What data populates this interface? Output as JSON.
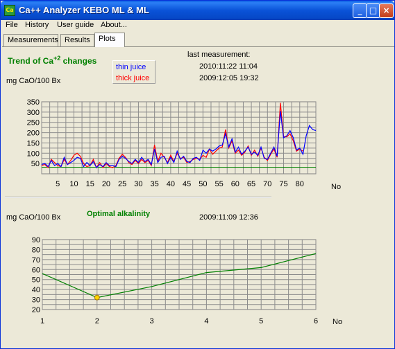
{
  "window": {
    "title": "Ca++ Analyzer KEBO ML & ML",
    "icon": "ca-app-icon"
  },
  "menu": [
    "File",
    "History",
    "User guide",
    "About..."
  ],
  "tabs": [
    "Measurements",
    "Results",
    "Plots"
  ],
  "active_tab": "Plots",
  "trend": {
    "title_main": "Trend of Ca",
    "title_sup": "+2",
    "title_end": " changes",
    "unit_label": "mg CaO/100 Bx",
    "legend": {
      "thin": "thin juice",
      "thick": "thick juice",
      "thin_color": "#0000ff",
      "thick_color": "#ff0000"
    },
    "last_label": "last measurement:",
    "thin_date": "2010:11:22  11:04",
    "thick_date": "2009:12:05  19:32",
    "axis_label": "No"
  },
  "alkalinity": {
    "title": "Optimal alkalinity",
    "unit_label": "mg CaO/100 Bx",
    "date": "2009:11:09  12:36",
    "axis_label": "No"
  },
  "chart_data": [
    {
      "type": "line",
      "ylim": [
        0,
        350
      ],
      "xlim": [
        0,
        85
      ],
      "yticks": [
        50,
        100,
        150,
        200,
        250,
        300,
        350
      ],
      "xticks": [
        5,
        10,
        15,
        20,
        25,
        30,
        35,
        40,
        45,
        50,
        55,
        60,
        65,
        70,
        75,
        80
      ],
      "grid": true,
      "legend_position": "top-left",
      "baseline": {
        "value": 32,
        "color": "#008000"
      },
      "series": [
        {
          "name": "thin juice",
          "color": "#0000ff",
          "x": [
            0,
            1,
            2,
            3,
            4,
            5,
            6,
            7,
            8,
            9,
            10,
            11,
            12,
            13,
            14,
            15,
            16,
            17,
            18,
            19,
            20,
            21,
            22,
            23,
            24,
            25,
            26,
            27,
            28,
            29,
            30,
            31,
            32,
            33,
            34,
            35,
            36,
            37,
            38,
            39,
            40,
            41,
            42,
            43,
            44,
            45,
            46,
            47,
            48,
            49,
            50,
            51,
            52,
            53,
            54,
            55,
            56,
            57,
            58,
            59,
            60,
            61,
            62,
            63,
            64,
            65,
            66,
            67,
            68,
            69,
            70,
            71,
            72,
            73,
            74,
            75,
            76,
            77,
            78,
            79,
            80,
            81,
            82,
            83,
            84,
            85
          ],
          "values": [
            45,
            50,
            35,
            65,
            40,
            50,
            35,
            80,
            45,
            55,
            65,
            80,
            75,
            35,
            55,
            40,
            60,
            30,
            45,
            35,
            55,
            40,
            40,
            35,
            70,
            85,
            75,
            60,
            50,
            70,
            55,
            80,
            60,
            70,
            45,
            120,
            55,
            80,
            85,
            50,
            80,
            55,
            110,
            70,
            85,
            60,
            55,
            75,
            80,
            65,
            115,
            100,
            120,
            110,
            120,
            135,
            140,
            195,
            130,
            170,
            105,
            130,
            95,
            110,
            130,
            95,
            105,
            90,
            130,
            75,
            70,
            100,
            130,
            85,
            305,
            175,
            185,
            210,
            175,
            115,
            125,
            95,
            185,
            235,
            215,
            210
          ]
        },
        {
          "name": "thick juice",
          "color": "#ff0000",
          "x": [
            0,
            1,
            2,
            3,
            4,
            5,
            6,
            7,
            8,
            9,
            10,
            11,
            12,
            13,
            14,
            15,
            16,
            17,
            18,
            19,
            20,
            21,
            22,
            23,
            24,
            25,
            26,
            27,
            28,
            29,
            30,
            31,
            32,
            33,
            34,
            35,
            36,
            37,
            38,
            39,
            40,
            41,
            42,
            43,
            44,
            45,
            46,
            47,
            48,
            49,
            50,
            51,
            52,
            53,
            54,
            55,
            56,
            57,
            58,
            59,
            60,
            61,
            62,
            63,
            64,
            65,
            66,
            67,
            68,
            69,
            70,
            71,
            72,
            73,
            74,
            75,
            76,
            77,
            78,
            79,
            80,
            81,
            82,
            83,
            84,
            85
          ],
          "values": [
            40,
            45,
            30,
            70,
            55,
            40,
            35,
            70,
            45,
            65,
            90,
            100,
            85,
            50,
            35,
            40,
            70,
            30,
            55,
            30,
            50,
            35,
            30,
            40,
            75,
            95,
            80,
            55,
            45,
            65,
            50,
            70,
            55,
            65,
            40,
            140,
            60,
            100,
            80,
            55,
            90,
            60,
            100,
            75,
            80,
            55,
            60,
            70,
            75,
            70,
            90,
            80,
            120,
            95,
            110,
            125,
            130,
            215,
            125,
            160,
            100,
            115,
            90,
            105,
            135,
            90,
            115,
            85,
            125,
            80,
            65,
            95,
            120,
            80,
            345,
            180,
            180,
            195,
            160,
            110,
            120,
            110,
            null,
            null,
            null,
            null
          ]
        }
      ]
    },
    {
      "type": "line",
      "ylim": [
        20,
        90
      ],
      "xlim": [
        1,
        6
      ],
      "yticks": [
        20,
        30,
        40,
        50,
        60,
        70,
        80,
        90
      ],
      "xticks": [
        1,
        2,
        3,
        4,
        5,
        6
      ],
      "grid": true,
      "series": [
        {
          "color": "#008000",
          "x": [
            1,
            2,
            3,
            4,
            5,
            6
          ],
          "values": [
            56,
            32,
            43,
            57,
            62,
            76
          ]
        }
      ],
      "marker": {
        "x": 2,
        "value": 32,
        "color": "#ffd400"
      }
    }
  ]
}
